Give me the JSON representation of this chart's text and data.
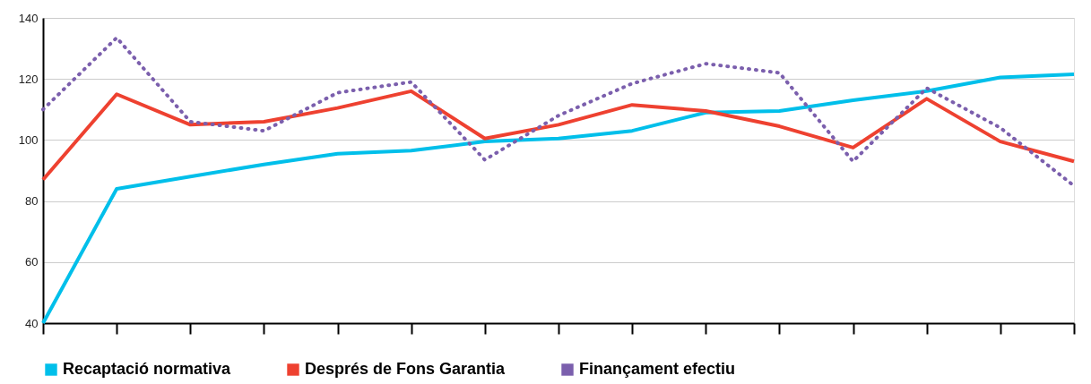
{
  "chart_data": {
    "type": "line",
    "categories": [
      null,
      null,
      null,
      null,
      null,
      null,
      null,
      null,
      null,
      null,
      null,
      null,
      null,
      null,
      null
    ],
    "series": [
      {
        "name": "Recaptació normativa",
        "color": "#00bfea",
        "line_style": "solid",
        "values": [
          40,
          84,
          88,
          92,
          95.5,
          96.5,
          99.5,
          100.5,
          103,
          109,
          109.5,
          113,
          116,
          120.5,
          121.5
        ]
      },
      {
        "name": "Després de Fons Garantia",
        "color": "#ee4130",
        "line_style": "solid",
        "values": [
          87,
          115,
          105,
          106,
          110.5,
          116,
          100.5,
          105,
          111.5,
          109.5,
          104.5,
          97.5,
          113.5,
          99.5,
          93
        ]
      },
      {
        "name": "Finançament efectiu",
        "color": "#7b5fad",
        "line_style": "dotted",
        "values": [
          110,
          133.5,
          106,
          103,
          115.5,
          119,
          93.5,
          108,
          118.5,
          125,
          122,
          93,
          117,
          104,
          85
        ]
      }
    ],
    "ylim": [
      40,
      140
    ],
    "yticks": [
      40,
      60,
      80,
      100,
      120,
      140
    ],
    "grid": "y",
    "legend": "bottom left",
    "tick_labels": "y",
    "marker": "none"
  }
}
